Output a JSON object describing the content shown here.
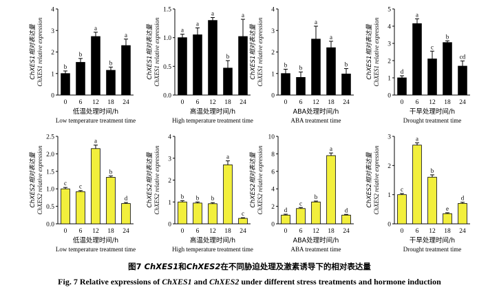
{
  "chart_data": [
    {
      "type": "bar",
      "gene": "ChXES1",
      "ylabel_zh": "ChXES1相对表达量",
      "ylabel_en": "ChXES1 relative expression",
      "xlabel_zh": "低温处理时间/h",
      "xlabel_en": "Low temperature treatment time",
      "categories": [
        "0",
        "6",
        "12",
        "18",
        "24"
      ],
      "values": [
        1.0,
        1.52,
        2.72,
        1.15,
        2.3
      ],
      "errors": [
        0.12,
        0.18,
        0.2,
        0.15,
        0.3
      ],
      "letters": [
        "b",
        "b",
        "a",
        "b",
        "a"
      ],
      "ylim": [
        0,
        4
      ],
      "yticks": [
        "0",
        "1",
        "2",
        "3",
        "4"
      ],
      "bar_color": "#000000"
    },
    {
      "type": "bar",
      "gene": "ChXES1",
      "ylabel_zh": "ChXES1相对表达量",
      "ylabel_en": "ChXES1 relative expression",
      "xlabel_zh": "高温处理时间/h",
      "xlabel_en": "High temperature treatment time",
      "categories": [
        "0",
        "6",
        "12",
        "18",
        "24"
      ],
      "values": [
        1.0,
        1.05,
        1.3,
        0.47,
        1.02
      ],
      "errors": [
        0.06,
        0.12,
        0.05,
        0.13,
        0.3
      ],
      "letters": [
        "a",
        "a",
        "a",
        "b",
        "a"
      ],
      "ylim": [
        0,
        1.5
      ],
      "yticks": [
        "0.0",
        "0.5",
        "1.0",
        "1.5"
      ],
      "bar_color": "#000000"
    },
    {
      "type": "bar",
      "gene": "ChXES1",
      "ylabel_zh": "ChXES1相对表达量",
      "ylabel_en": "ChXES1 relative expression",
      "xlabel_zh": "ABA处理时间/h",
      "xlabel_en": "ABA treatment time",
      "categories": [
        "0",
        "6",
        "12",
        "18",
        "24"
      ],
      "values": [
        1.0,
        0.82,
        2.6,
        2.2,
        0.98
      ],
      "errors": [
        0.2,
        0.25,
        0.6,
        0.3,
        0.25
      ],
      "letters": [
        "b",
        "b",
        "a",
        "a",
        "b"
      ],
      "ylim": [
        0,
        4
      ],
      "yticks": [
        "0",
        "1",
        "2",
        "3",
        "4"
      ],
      "bar_color": "#000000"
    },
    {
      "type": "bar",
      "gene": "ChXES1",
      "ylabel_zh": "ChXES1相对表达量",
      "ylabel_en": "ChXES1 relative expression",
      "xlabel_zh": "干旱处理时间/h",
      "xlabel_en": "Drought treatment time",
      "categories": [
        "0",
        "6",
        "12",
        "18",
        "24"
      ],
      "values": [
        1.0,
        4.15,
        2.1,
        3.05,
        1.68
      ],
      "errors": [
        0.12,
        0.28,
        0.45,
        0.1,
        0.3
      ],
      "letters": [
        "d",
        "a",
        "c",
        "b",
        "cd"
      ],
      "ylim": [
        0,
        5
      ],
      "yticks": [
        "0",
        "1",
        "2",
        "3",
        "4",
        "5"
      ],
      "bar_color": "#000000"
    },
    {
      "type": "bar",
      "gene": "ChXES2",
      "ylabel_zh": "ChXES2相对表达量",
      "ylabel_en": "ChXES2 relative expression",
      "xlabel_zh": "低温处理时间/h",
      "xlabel_en": "Low temperature treatment time",
      "categories": [
        "0",
        "6",
        "12",
        "18",
        "24"
      ],
      "values": [
        1.0,
        0.92,
        2.15,
        1.33,
        0.58
      ],
      "errors": [
        0.04,
        0.03,
        0.1,
        0.04,
        0.03
      ],
      "letters": [
        "c",
        "c",
        "a",
        "b",
        "d"
      ],
      "ylim": [
        0,
        2.5
      ],
      "yticks": [
        "0.0",
        "0.5",
        "1.0",
        "1.5",
        "2.0",
        "2.5"
      ],
      "bar_color": "#f2ef3c"
    },
    {
      "type": "bar",
      "gene": "ChXES2",
      "ylabel_zh": "ChXES2相对表达量",
      "ylabel_en": "ChXES2 relative expression",
      "xlabel_zh": "高温处理时间/h",
      "xlabel_en": "High temperature treatment time",
      "categories": [
        "0",
        "6",
        "12",
        "18",
        "24"
      ],
      "values": [
        1.0,
        0.95,
        0.92,
        2.7,
        0.25
      ],
      "errors": [
        0.06,
        0.05,
        0.05,
        0.18,
        0.03
      ],
      "letters": [
        "b",
        "b",
        "b",
        "a",
        "c"
      ],
      "ylim": [
        0,
        4
      ],
      "yticks": [
        "0",
        "1",
        "2",
        "3",
        "4"
      ],
      "bar_color": "#f2ef3c"
    },
    {
      "type": "bar",
      "gene": "ChXES2",
      "ylabel_zh": "ChXES2相对表达量",
      "ylabel_en": "ChXES2 relative expression",
      "xlabel_zh": "ABA处理时间/h",
      "xlabel_en": "ABA treatment time",
      "categories": [
        "0",
        "6",
        "12",
        "18",
        "24"
      ],
      "values": [
        1.0,
        1.75,
        2.5,
        7.8,
        1.0
      ],
      "errors": [
        0.1,
        0.12,
        0.1,
        0.3,
        0.08
      ],
      "letters": [
        "d",
        "c",
        "b",
        "a",
        "d"
      ],
      "ylim": [
        0,
        10
      ],
      "yticks": [
        "0",
        "2",
        "4",
        "6",
        "8",
        "10"
      ],
      "bar_color": "#f2ef3c"
    },
    {
      "type": "bar",
      "gene": "ChXES2",
      "ylabel_zh": "ChXES2相对表达量",
      "ylabel_en": "ChXES2 relative expression",
      "xlabel_zh": "干旱处理时间/h",
      "xlabel_en": "Drought treatment time",
      "categories": [
        "0",
        "6",
        "12",
        "18",
        "24"
      ],
      "values": [
        1.0,
        2.7,
        1.6,
        0.35,
        0.7
      ],
      "errors": [
        0.04,
        0.08,
        0.08,
        0.03,
        0.04
      ],
      "letters": [
        "c",
        "a",
        "b",
        "e",
        "d"
      ],
      "ylim": [
        0,
        3
      ],
      "yticks": [
        "0",
        "1",
        "2",
        "3"
      ],
      "bar_color": "#f2ef3c"
    }
  ],
  "caption": {
    "zh_prefix": "图7   ",
    "zh_gene1": "ChXES1",
    "zh_and": "和",
    "zh_gene2": "ChXES2",
    "zh_rest": "在不同胁迫处理及激素诱导下的相对表达量",
    "en_prefix": "Fig. 7    Relative expressions of ",
    "en_gene1": "ChXES1",
    "en_and": " and ",
    "en_gene2": "ChXES2",
    "en_rest": " under different stress treatments and hormone induction"
  }
}
